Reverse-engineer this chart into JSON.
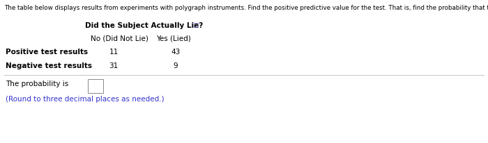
{
  "header_text": "The table below displays results from experiments with polygraph instruments. Find the positive predictive value for the test. That is, find the probability that the subject lied, given that the test yields a positive result.",
  "table_header_main": "Did the Subject Actually Lie?",
  "col1_header": "No (Did Not Lie)",
  "col2_header": "Yes (Lied)",
  "row1_label": "Positive test results",
  "row2_label": "Negative test results",
  "row1_col1": "11",
  "row1_col2": "43",
  "row2_col1": "31",
  "row2_col2": "9",
  "probability_label": "The probability is",
  "note": "(Round to three decimal places as needed.)",
  "background_color": "#ffffff",
  "text_color": "#000000",
  "blue_color": "#3333cc",
  "header_fontsize": 6.3,
  "label_fontsize": 7.5,
  "bold_fontsize": 7.5,
  "note_fontsize": 7.5,
  "icon_color": "#6666cc"
}
